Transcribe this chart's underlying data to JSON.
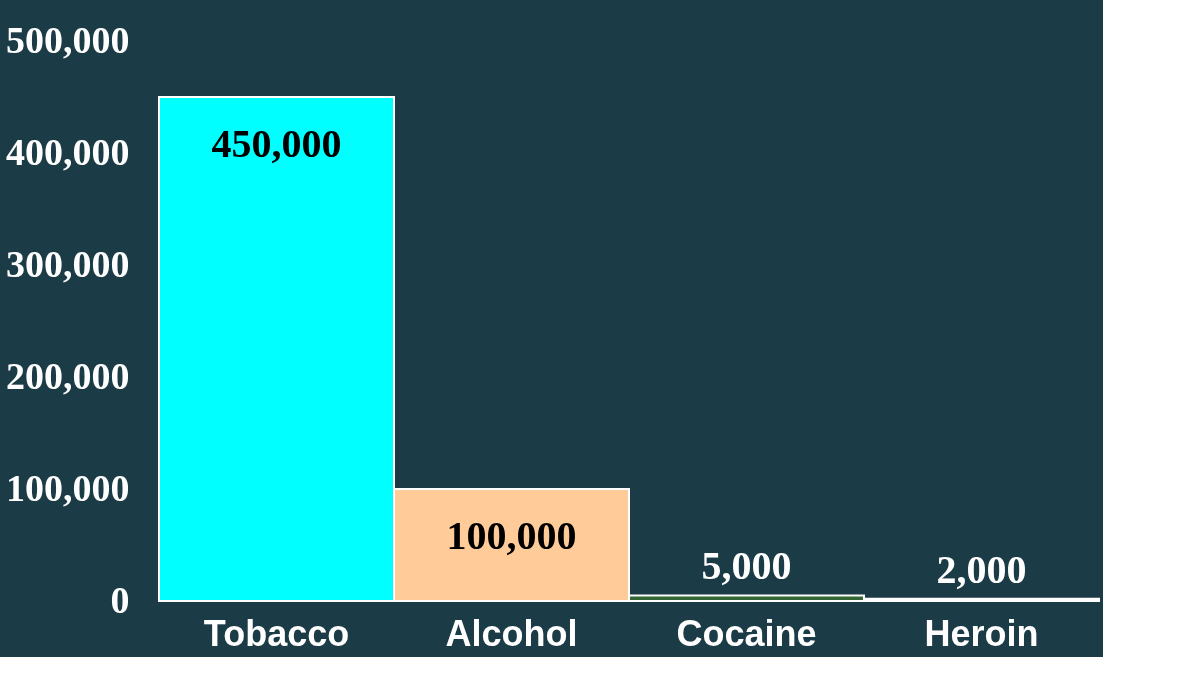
{
  "chart_data": {
    "type": "bar",
    "categories": [
      "Tobacco",
      "Alcohol",
      "Cocaine",
      "Heroin"
    ],
    "values": [
      450000,
      100000,
      5000,
      2000
    ],
    "value_labels": [
      "450,000",
      "100,000",
      "5,000",
      "2,000"
    ],
    "colors": [
      "#00ffff",
      "#ffcc99",
      "#336633",
      "#ffffff"
    ],
    "ylim": [
      0,
      500000
    ],
    "yticks": [
      {
        "value": 0,
        "label": "0"
      },
      {
        "value": 100000,
        "label": "100,000"
      },
      {
        "value": 200000,
        "label": "200,000"
      },
      {
        "value": 300000,
        "label": "300,000"
      },
      {
        "value": 400000,
        "label": "400,000"
      },
      {
        "value": 500000,
        "label": "500,000"
      }
    ],
    "grid": false
  }
}
